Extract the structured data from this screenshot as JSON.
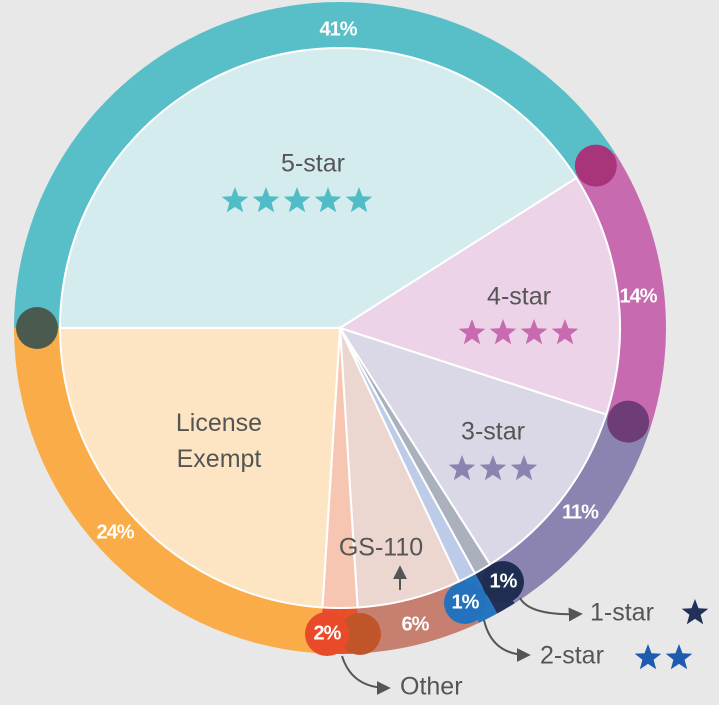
{
  "chart_data": {
    "type": "pie",
    "categories": [
      "5-star",
      "4-star",
      "3-star",
      "1-star",
      "2-star",
      "GS-110",
      "Other",
      "License Exempt"
    ],
    "values": [
      41,
      14,
      11,
      1,
      1,
      6,
      2,
      24
    ],
    "value_labels": [
      "41%",
      "14%",
      "11%",
      "1%",
      "1%",
      "6%",
      "2%",
      "24%"
    ],
    "colors": [
      "#58bfc9",
      "#c86aaf",
      "#8c84b0",
      "#23315a",
      "#2575c0",
      "#c7806f",
      "#e8502c",
      "#f9ac47"
    ],
    "inner_colors": [
      "#d5ecef",
      "#ecd3e8",
      "#dad8e6",
      "#aab0bc",
      "#bccbe8",
      "#ecd6d0",
      "#f7c6b2",
      "#fde5c4"
    ]
  }
}
